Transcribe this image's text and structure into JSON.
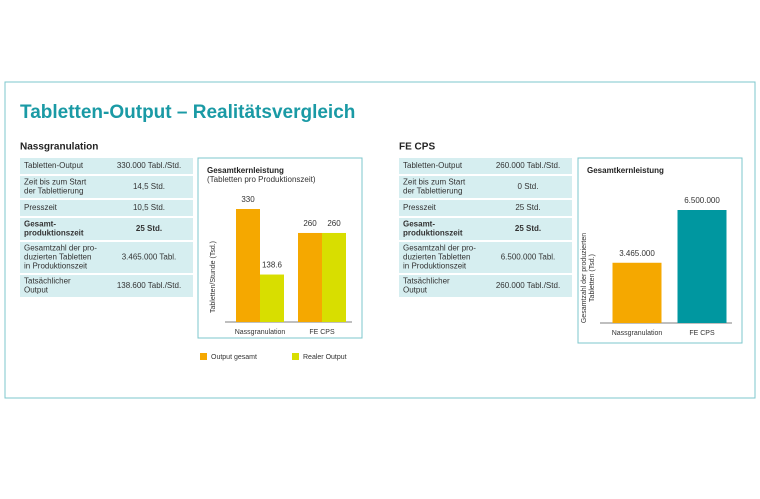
{
  "title": "Tabletten-Output – Realitätsvergleich",
  "sections": [
    {
      "heading": "Nassgranulation",
      "rows": [
        {
          "label": [
            "Tabletten-Output"
          ],
          "value": "330.000 Tabl./Std.",
          "bold": false
        },
        {
          "label": [
            "Zeit bis zum Start",
            "der Tablettierung"
          ],
          "value": "14,5 Std.",
          "bold": false
        },
        {
          "label": [
            "Presszeit"
          ],
          "value": "10,5 Std.",
          "bold": false
        },
        {
          "label": [
            "Gesamt-",
            "produktionszeit"
          ],
          "value": "25 Std.",
          "bold": true
        },
        {
          "label": [
            "Gesamtzahl der pro-",
            "duzierten Tabletten",
            "in Produktionszeit"
          ],
          "value": "3.465.000 Tabl.",
          "bold": false
        },
        {
          "label": [
            "Tatsächlicher",
            "Output"
          ],
          "value": "138.600 Tabl./Std.",
          "bold": false
        }
      ]
    },
    {
      "heading": "FE CPS",
      "rows": [
        {
          "label": [
            "Tabletten-Output"
          ],
          "value": "260.000 Tabl./Std.",
          "bold": false
        },
        {
          "label": [
            "Zeit bis zum Start",
            "der Tablettierung"
          ],
          "value": "0 Std.",
          "bold": false
        },
        {
          "label": [
            "Presszeit"
          ],
          "value": "25 Std.",
          "bold": false
        },
        {
          "label": [
            "Gesamt-",
            "produktionszeit"
          ],
          "value": "25 Std.",
          "bold": true
        },
        {
          "label": [
            "Gesamtzahl der pro-",
            "duzierten Tabletten",
            "in Produktionszeit"
          ],
          "value": "6.500.000 Tabl.",
          "bold": false
        },
        {
          "label": [
            "Tatsächlicher",
            "Output"
          ],
          "value": "260.000 Tabl./Std.",
          "bold": false
        }
      ]
    }
  ],
  "chart_data": [
    {
      "type": "bar",
      "title": "Gesamtkernleistung",
      "subtitle": "(Tabletten pro Produktionszeit)",
      "ylabel": [
        "Tabletten/Stunde (Tsd.)"
      ],
      "categories": [
        "Nassgranulation",
        "FE CPS"
      ],
      "series": [
        {
          "name": "Output gesamt",
          "color": "#f5a800",
          "values": [
            330,
            260
          ]
        },
        {
          "name": "Realer Output",
          "color": "#d8de00",
          "values": [
            138.6,
            260
          ]
        }
      ],
      "legend": "bottom"
    },
    {
      "type": "bar",
      "title": "Gesamtkernleistung",
      "ylabel": [
        "Gesamtzahl der produzierten",
        "Tabletten (Tsd.)"
      ],
      "categories": [
        "Nassgranulation",
        "FE CPS"
      ],
      "values": [
        3465000,
        6500000
      ],
      "value_labels": [
        "3.465.000",
        "6.500.000"
      ],
      "colors": [
        "#f5a800",
        "#0097a0"
      ]
    }
  ]
}
